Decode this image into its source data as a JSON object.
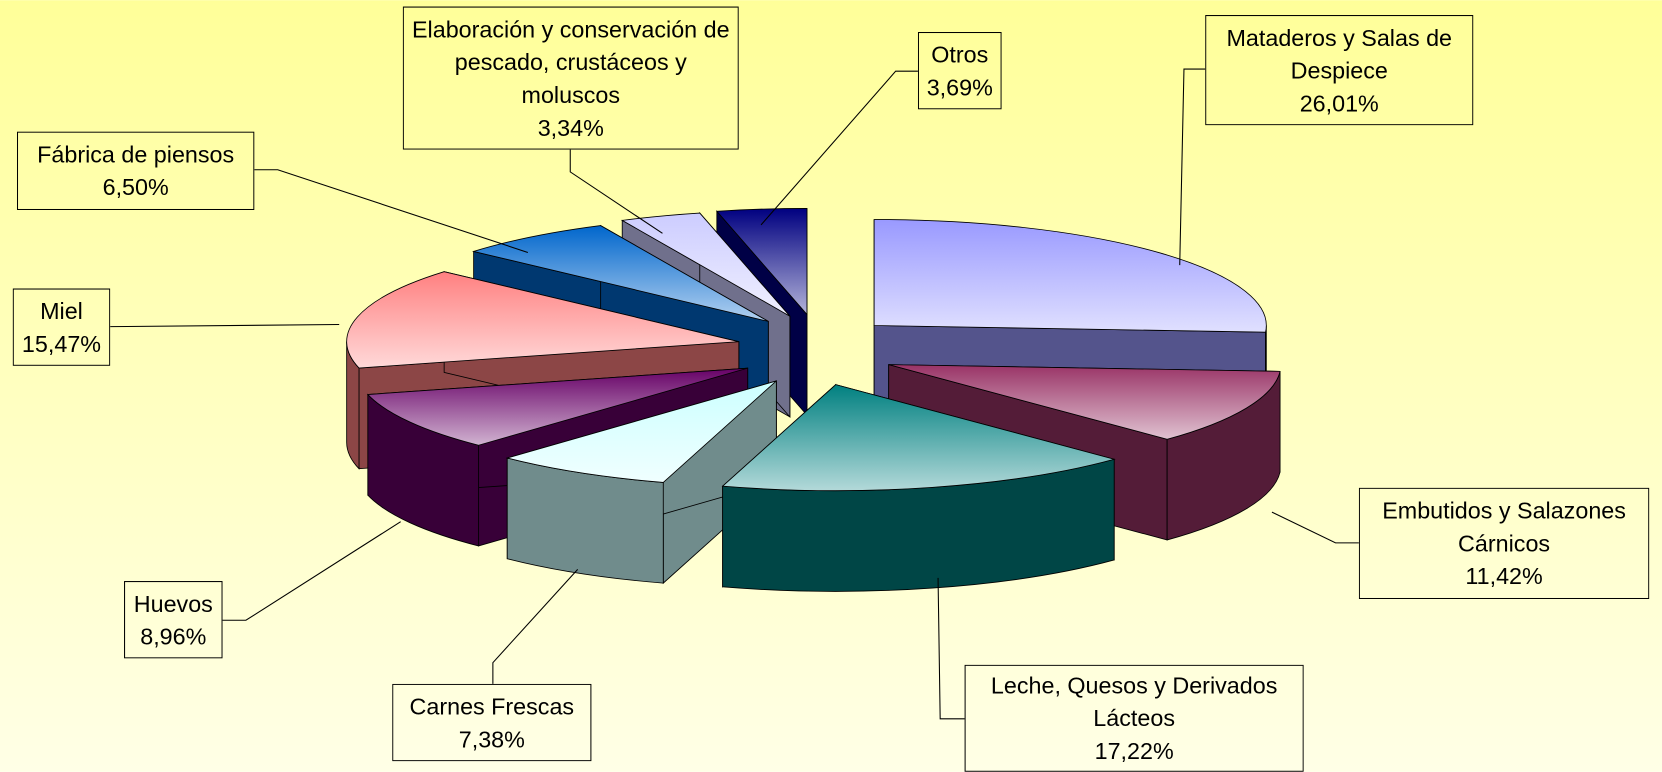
{
  "chart_data": {
    "type": "pie3d",
    "categories": [
      "Mataderos y Salas de Despiece",
      "Embutidos y Salazones Cárnicos",
      "Leche, Quesos y Derivados Lácteos",
      "Carnes Frescas",
      "Huevos",
      "Miel",
      "Fábrica de piensos",
      "Elaboración y conservación de pescado, crustáceos y moluscos",
      "Otros"
    ],
    "values": [
      26.01,
      11.42,
      17.22,
      7.38,
      8.96,
      15.47,
      6.5,
      3.34,
      3.69
    ],
    "value_labels": [
      "26,01%",
      "11,42%",
      "17,22%",
      "7,38%",
      "8,96%",
      "15,47%",
      "6,50%",
      "3,34%",
      "3,69%"
    ],
    "colors": [
      "#9999ff",
      "#993366",
      "#008080",
      "#ccffff",
      "#660066",
      "#ff8080",
      "#0066cc",
      "#ccccff",
      "#000080"
    ]
  }
}
